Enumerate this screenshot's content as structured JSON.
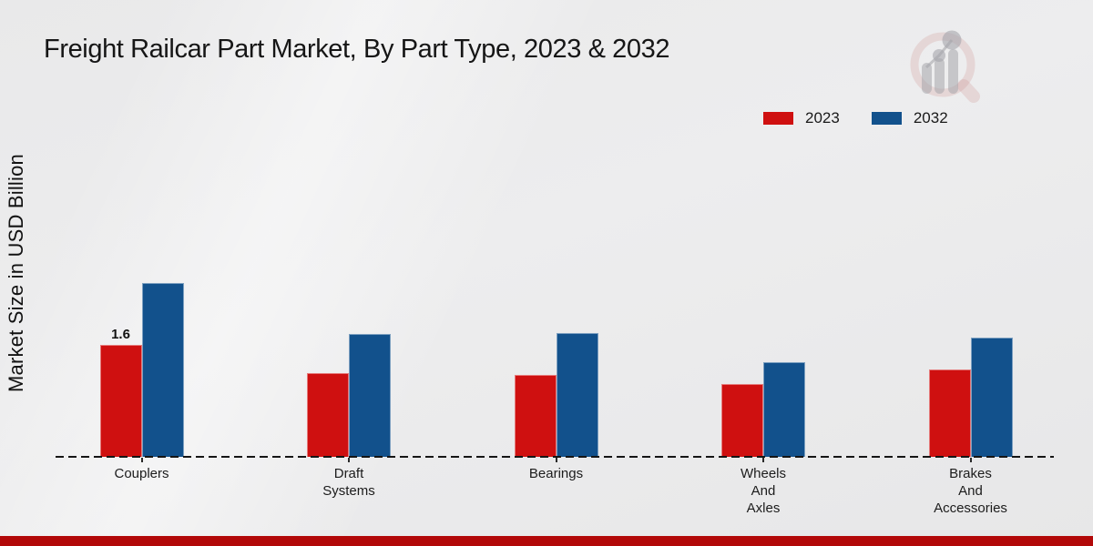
{
  "title": "Freight Railcar Part Market, By Part Type, 2023 & 2032",
  "y_axis_label": "Market Size in USD Billion",
  "legend": {
    "position": "top-right",
    "items": [
      {
        "label": "2023",
        "color": "#cf1010"
      },
      {
        "label": "2032",
        "color": "#12518c"
      }
    ]
  },
  "watermark_icon": "market-research-future-magnifier-bar-chart-logo",
  "footer_accent_color": "#b20808",
  "chart_data": {
    "type": "bar",
    "title": "Freight Railcar Part Market, By Part Type, 2023 & 2032",
    "xlabel": "",
    "ylabel": "Market Size in USD Billion",
    "categories": [
      "Couplers",
      "Draft\nSystems",
      "Bearings",
      "Wheels\nAnd\nAxles",
      "Brakes\nAnd\nAccessories"
    ],
    "series": [
      {
        "name": "2023",
        "color": "#cf1010",
        "values": [
          1.6,
          1.2,
          1.17,
          1.04,
          1.25
        ]
      },
      {
        "name": "2032",
        "color": "#12518c",
        "values": [
          2.48,
          1.76,
          1.77,
          1.35,
          1.7
        ]
      }
    ],
    "bar_labels": [
      {
        "series": "2023",
        "category_index": 0,
        "text": "1.6"
      }
    ],
    "ylim": [
      0,
      4.6
    ],
    "grid": false,
    "legend_position": "top-right",
    "baseline_style": "dashed",
    "axis_ticks_visible": false
  }
}
